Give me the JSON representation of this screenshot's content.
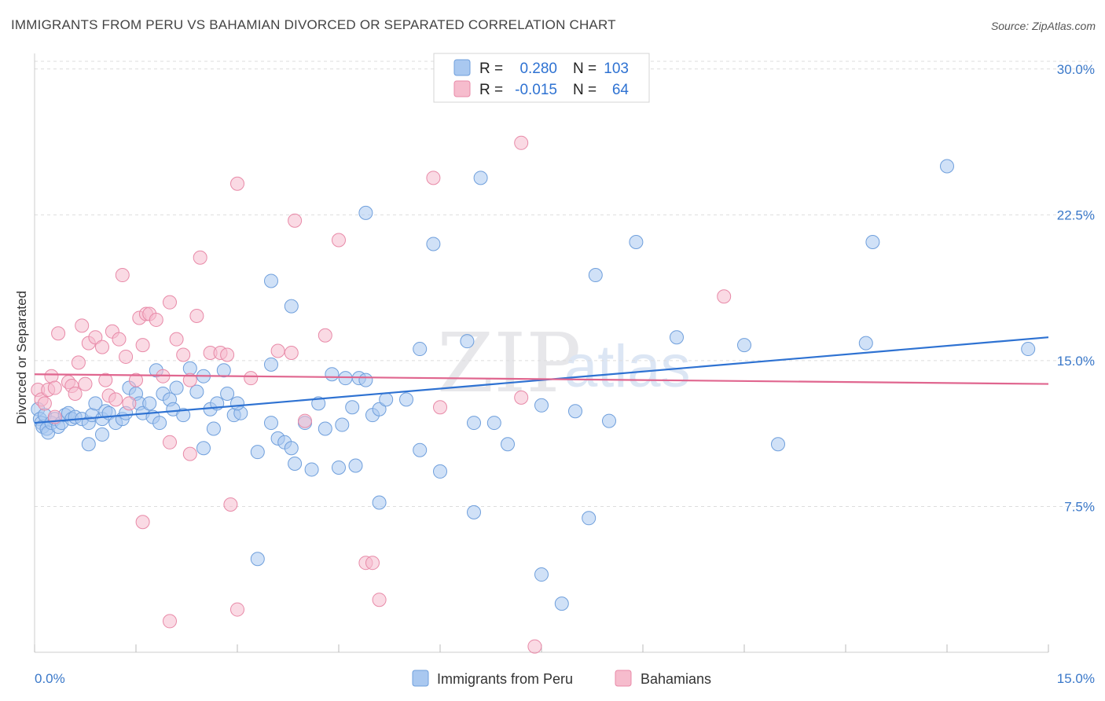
{
  "title": "IMMIGRANTS FROM PERU VS BAHAMIAN DIVORCED OR SEPARATED CORRELATION CHART",
  "source": "Source: ZipAtlas.com",
  "watermark": {
    "zip": "ZIP",
    "atlas": "atlas"
  },
  "colors": {
    "blue_fill": "#a9c8f0",
    "blue_stroke": "#6f9fdc",
    "blue_line": "#2e72d2",
    "pink_fill": "#f6bccd",
    "pink_stroke": "#e88aa8",
    "pink_line": "#e0668f",
    "tick_text": "#3a78c9",
    "grid": "#dddddd"
  },
  "legend": {
    "rows": [
      {
        "r_label": "R =",
        "r_value": "0.280",
        "n_label": "N =",
        "n_value": "103"
      },
      {
        "r_label": "R =",
        "r_value": "-0.015",
        "n_label": "N =",
        "n_value": "64"
      }
    ]
  },
  "bottom_legend": [
    "Immigrants from Peru",
    "Bahamians"
  ],
  "chart_data": {
    "type": "scatter",
    "title": "IMMIGRANTS FROM PERU VS BAHAMIAN DIVORCED OR SEPARATED CORRELATION CHART",
    "xlabel": "",
    "ylabel": "Divorced or Separated",
    "xlim": [
      0,
      15
    ],
    "ylim": [
      0,
      30.8
    ],
    "x_tick_labels": [
      "0.0%",
      "15.0%"
    ],
    "y_ticks": [
      7.5,
      15.0,
      22.5,
      30.0
    ],
    "y_tick_labels": [
      "7.5%",
      "15.0%",
      "22.5%",
      "30.0%"
    ],
    "grid": true,
    "series": [
      {
        "name": "Immigrants from Peru",
        "color": "#a9c8f0",
        "R": 0.28,
        "N": 103,
        "trend": {
          "x": [
            0,
            15
          ],
          "y": [
            11.8,
            16.2
          ]
        },
        "points": [
          [
            0.05,
            12.5
          ],
          [
            0.08,
            12.0
          ],
          [
            0.1,
            11.8
          ],
          [
            0.12,
            11.6
          ],
          [
            0.15,
            12.2
          ],
          [
            0.18,
            11.5
          ],
          [
            0.2,
            11.3
          ],
          [
            0.25,
            11.8
          ],
          [
            0.3,
            12.0
          ],
          [
            0.35,
            11.6
          ],
          [
            0.4,
            11.8
          ],
          [
            0.45,
            12.2
          ],
          [
            0.5,
            12.3
          ],
          [
            0.55,
            12.0
          ],
          [
            0.6,
            12.1
          ],
          [
            0.7,
            12.0
          ],
          [
            0.8,
            11.8
          ],
          [
            0.85,
            12.2
          ],
          [
            0.9,
            12.8
          ],
          [
            1.0,
            12.0
          ],
          [
            1.05,
            12.4
          ],
          [
            1.1,
            12.3
          ],
          [
            1.2,
            11.8
          ],
          [
            1.3,
            12.0
          ],
          [
            1.35,
            12.3
          ],
          [
            1.4,
            13.6
          ],
          [
            1.5,
            13.3
          ],
          [
            1.55,
            12.8
          ],
          [
            1.6,
            12.3
          ],
          [
            1.7,
            12.8
          ],
          [
            1.75,
            12.1
          ],
          [
            1.8,
            14.5
          ],
          [
            1.85,
            11.8
          ],
          [
            1.9,
            13.3
          ],
          [
            2.0,
            13.0
          ],
          [
            2.05,
            12.5
          ],
          [
            2.1,
            13.6
          ],
          [
            2.2,
            12.2
          ],
          [
            2.3,
            14.6
          ],
          [
            2.4,
            13.4
          ],
          [
            2.5,
            14.2
          ],
          [
            2.6,
            12.5
          ],
          [
            2.65,
            11.5
          ],
          [
            2.7,
            12.8
          ],
          [
            2.8,
            14.5
          ],
          [
            2.85,
            13.3
          ],
          [
            2.95,
            12.2
          ],
          [
            3.05,
            12.3
          ],
          [
            3.0,
            12.8
          ],
          [
            0.8,
            10.7
          ],
          [
            1.0,
            11.2
          ],
          [
            2.5,
            10.5
          ],
          [
            3.3,
            10.3
          ],
          [
            3.5,
            11.8
          ],
          [
            3.6,
            11.0
          ],
          [
            3.7,
            10.8
          ],
          [
            3.8,
            10.5
          ],
          [
            3.85,
            9.7
          ],
          [
            4.0,
            11.8
          ],
          [
            4.1,
            9.4
          ],
          [
            4.2,
            12.8
          ],
          [
            4.3,
            11.5
          ],
          [
            4.4,
            14.3
          ],
          [
            4.5,
            9.5
          ],
          [
            4.55,
            11.7
          ],
          [
            4.6,
            14.1
          ],
          [
            4.7,
            12.6
          ],
          [
            4.75,
            9.6
          ],
          [
            4.8,
            14.1
          ],
          [
            5.0,
            12.2
          ],
          [
            5.1,
            12.5
          ],
          [
            5.2,
            13.0
          ],
          [
            5.5,
            13.0
          ],
          [
            5.7,
            10.4
          ],
          [
            6.0,
            9.3
          ],
          [
            6.5,
            11.8
          ],
          [
            6.8,
            11.8
          ],
          [
            7.0,
            10.7
          ],
          [
            7.5,
            12.7
          ],
          [
            8.0,
            12.4
          ],
          [
            8.5,
            11.9
          ],
          [
            3.5,
            19.1
          ],
          [
            3.8,
            17.8
          ],
          [
            4.9,
            22.6
          ],
          [
            5.9,
            21.0
          ],
          [
            6.6,
            24.4
          ],
          [
            8.3,
            19.4
          ],
          [
            8.9,
            21.1
          ],
          [
            5.7,
            15.6
          ],
          [
            6.4,
            16.0
          ],
          [
            9.5,
            16.2
          ],
          [
            10.5,
            15.8
          ],
          [
            11.0,
            10.7
          ],
          [
            12.3,
            15.9
          ],
          [
            12.4,
            21.1
          ],
          [
            13.5,
            25.0
          ],
          [
            14.7,
            15.6
          ],
          [
            5.1,
            7.7
          ],
          [
            6.5,
            7.2
          ],
          [
            8.2,
            6.9
          ],
          [
            3.3,
            4.8
          ],
          [
            7.5,
            4.0
          ],
          [
            7.8,
            2.5
          ],
          [
            3.5,
            14.8
          ],
          [
            4.9,
            14.0
          ]
        ]
      },
      {
        "name": "Bahamians",
        "color": "#f6bccd",
        "R": -0.015,
        "N": 64,
        "trend": {
          "x": [
            0,
            15
          ],
          "y": [
            14.3,
            13.8
          ]
        },
        "points": [
          [
            0.05,
            13.5
          ],
          [
            0.1,
            13.0
          ],
          [
            0.15,
            12.8
          ],
          [
            0.2,
            13.5
          ],
          [
            0.25,
            14.2
          ],
          [
            0.3,
            13.6
          ],
          [
            0.35,
            16.4
          ],
          [
            0.5,
            13.9
          ],
          [
            0.55,
            13.7
          ],
          [
            0.6,
            13.3
          ],
          [
            0.65,
            14.9
          ],
          [
            0.7,
            16.8
          ],
          [
            0.75,
            13.8
          ],
          [
            0.8,
            15.9
          ],
          [
            0.9,
            16.2
          ],
          [
            1.0,
            15.7
          ],
          [
            1.05,
            14.0
          ],
          [
            1.1,
            13.2
          ],
          [
            1.15,
            16.5
          ],
          [
            1.2,
            13.0
          ],
          [
            1.25,
            16.1
          ],
          [
            1.3,
            19.4
          ],
          [
            1.35,
            15.2
          ],
          [
            1.4,
            12.8
          ],
          [
            1.5,
            14.0
          ],
          [
            1.55,
            17.2
          ],
          [
            1.6,
            15.8
          ],
          [
            1.65,
            17.4
          ],
          [
            1.7,
            17.4
          ],
          [
            1.8,
            17.1
          ],
          [
            1.9,
            14.2
          ],
          [
            2.0,
            18.0
          ],
          [
            2.1,
            16.1
          ],
          [
            2.2,
            15.3
          ],
          [
            2.3,
            14.0
          ],
          [
            2.4,
            17.3
          ],
          [
            2.45,
            20.3
          ],
          [
            2.6,
            15.4
          ],
          [
            2.75,
            15.4
          ],
          [
            2.85,
            15.3
          ],
          [
            3.0,
            24.1
          ],
          [
            3.2,
            14.1
          ],
          [
            3.6,
            15.5
          ],
          [
            3.8,
            15.4
          ],
          [
            3.85,
            22.2
          ],
          [
            4.0,
            11.9
          ],
          [
            4.3,
            16.3
          ],
          [
            4.5,
            21.2
          ],
          [
            5.9,
            24.4
          ],
          [
            6.0,
            12.6
          ],
          [
            7.2,
            26.2
          ],
          [
            7.2,
            13.1
          ],
          [
            10.2,
            18.3
          ],
          [
            1.6,
            6.7
          ],
          [
            2.0,
            10.8
          ],
          [
            2.3,
            10.2
          ],
          [
            2.9,
            7.6
          ],
          [
            4.9,
            4.6
          ],
          [
            5.0,
            4.6
          ],
          [
            5.1,
            2.7
          ],
          [
            2.0,
            1.6
          ],
          [
            3.0,
            2.2
          ],
          [
            7.4,
            0.3
          ],
          [
            0.3,
            12.1
          ]
        ]
      }
    ]
  }
}
